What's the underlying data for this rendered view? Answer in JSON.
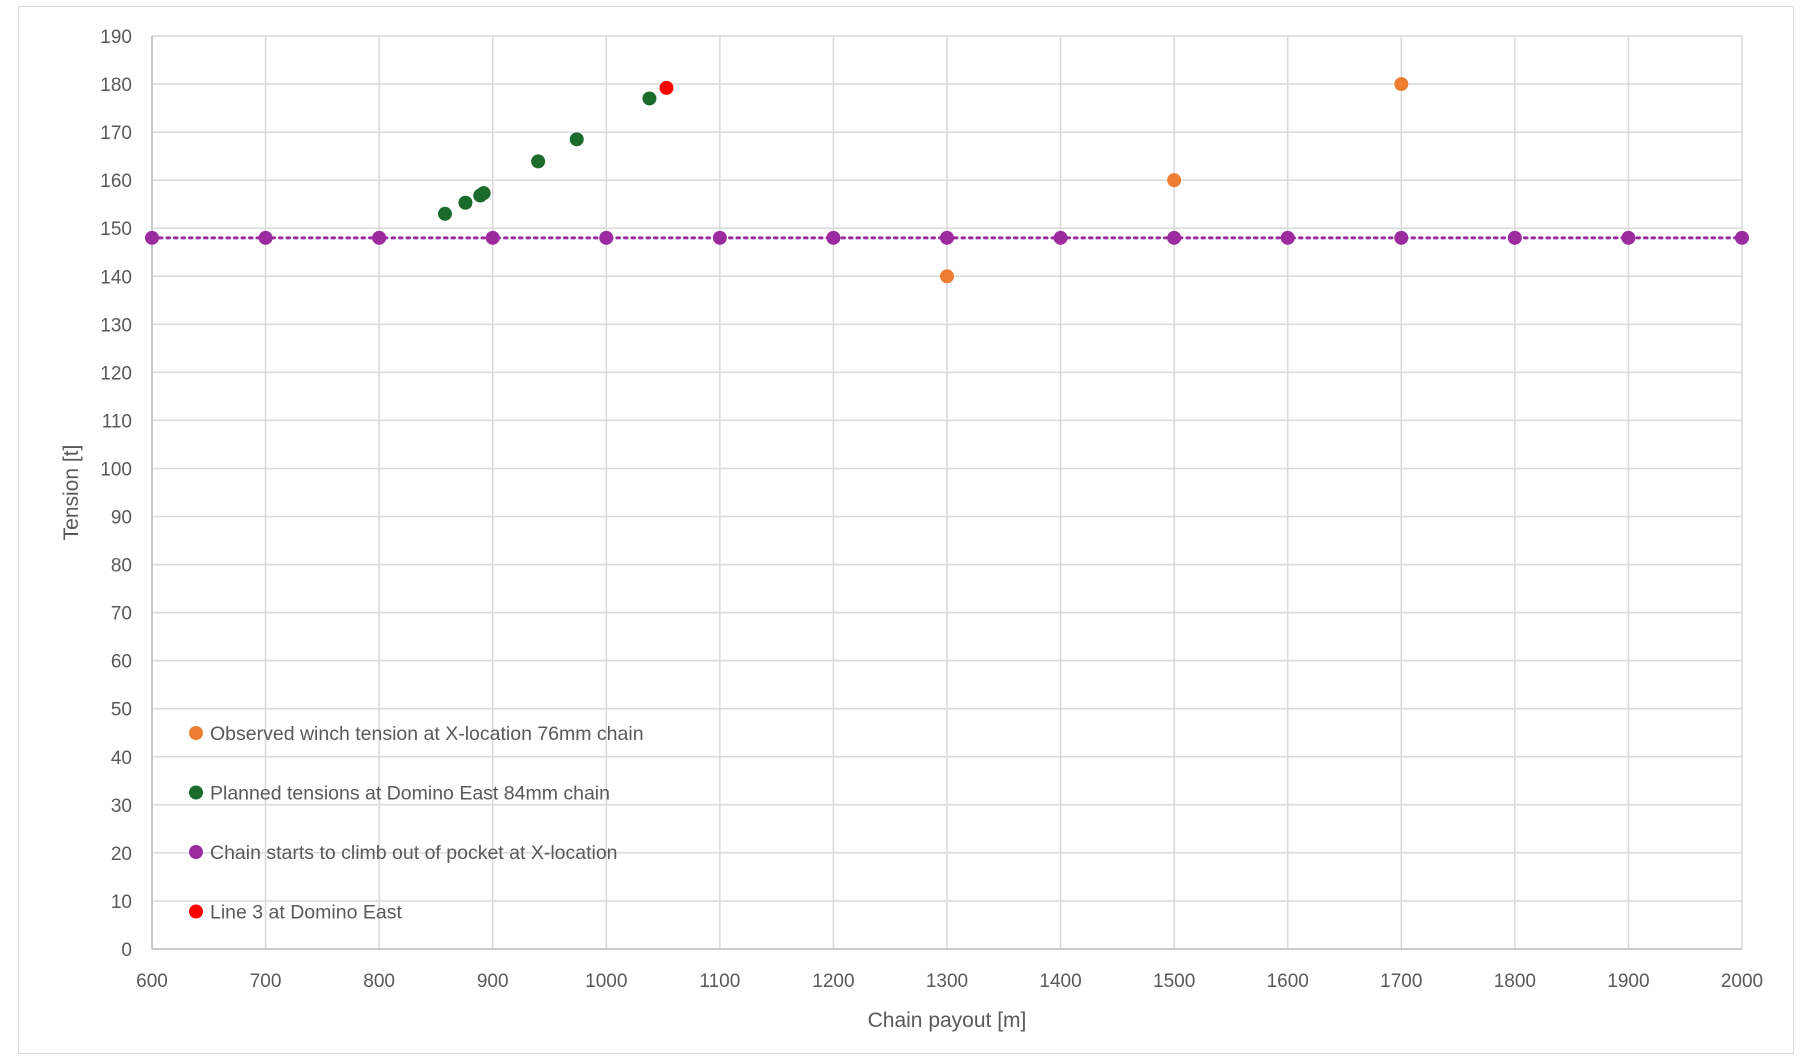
{
  "chart_data": {
    "type": "scatter",
    "title": "",
    "xlabel": "Chain payout [m]",
    "ylabel": "Tension [t]",
    "xlim": [
      600,
      2000
    ],
    "ylim": [
      0,
      190
    ],
    "x_ticks": [
      600,
      700,
      800,
      900,
      1000,
      1100,
      1200,
      1300,
      1400,
      1500,
      1600,
      1700,
      1800,
      1900,
      2000
    ],
    "y_ticks": [
      0,
      10,
      20,
      30,
      40,
      50,
      60,
      70,
      80,
      90,
      100,
      110,
      120,
      130,
      140,
      150,
      160,
      170,
      180,
      190
    ],
    "grid": true,
    "legend_position": "bottom-left inside",
    "series": [
      {
        "name": "Observed winch tension at X-location 76mm chain",
        "color": "#ED7D31",
        "points": [
          [
            1300,
            140
          ],
          [
            1500,
            160
          ],
          [
            1700,
            180
          ]
        ]
      },
      {
        "name": "Planned tensions at Domino East 84mm chain",
        "color": "#1B6B2A",
        "points": [
          [
            858,
            153
          ],
          [
            876,
            155.3
          ],
          [
            889,
            156.8
          ],
          [
            892,
            157.3
          ],
          [
            940,
            163.9
          ],
          [
            974,
            168.5
          ],
          [
            1038,
            177
          ]
        ]
      },
      {
        "name": "Chain starts to climb out of pocket at X-location",
        "color": "#9B2B9E",
        "dotted_line": true,
        "points": [
          [
            600,
            148
          ],
          [
            700,
            148
          ],
          [
            800,
            148
          ],
          [
            900,
            148
          ],
          [
            1000,
            148
          ],
          [
            1100,
            148
          ],
          [
            1200,
            148
          ],
          [
            1300,
            148
          ],
          [
            1400,
            148
          ],
          [
            1500,
            148
          ],
          [
            1600,
            148
          ],
          [
            1700,
            148
          ],
          [
            1800,
            148
          ],
          [
            1900,
            148
          ],
          [
            2000,
            148
          ]
        ]
      },
      {
        "name": "Line 3 at Domino East",
        "color": "#FF0000",
        "points": [
          [
            1053,
            179.2
          ]
        ]
      }
    ]
  }
}
